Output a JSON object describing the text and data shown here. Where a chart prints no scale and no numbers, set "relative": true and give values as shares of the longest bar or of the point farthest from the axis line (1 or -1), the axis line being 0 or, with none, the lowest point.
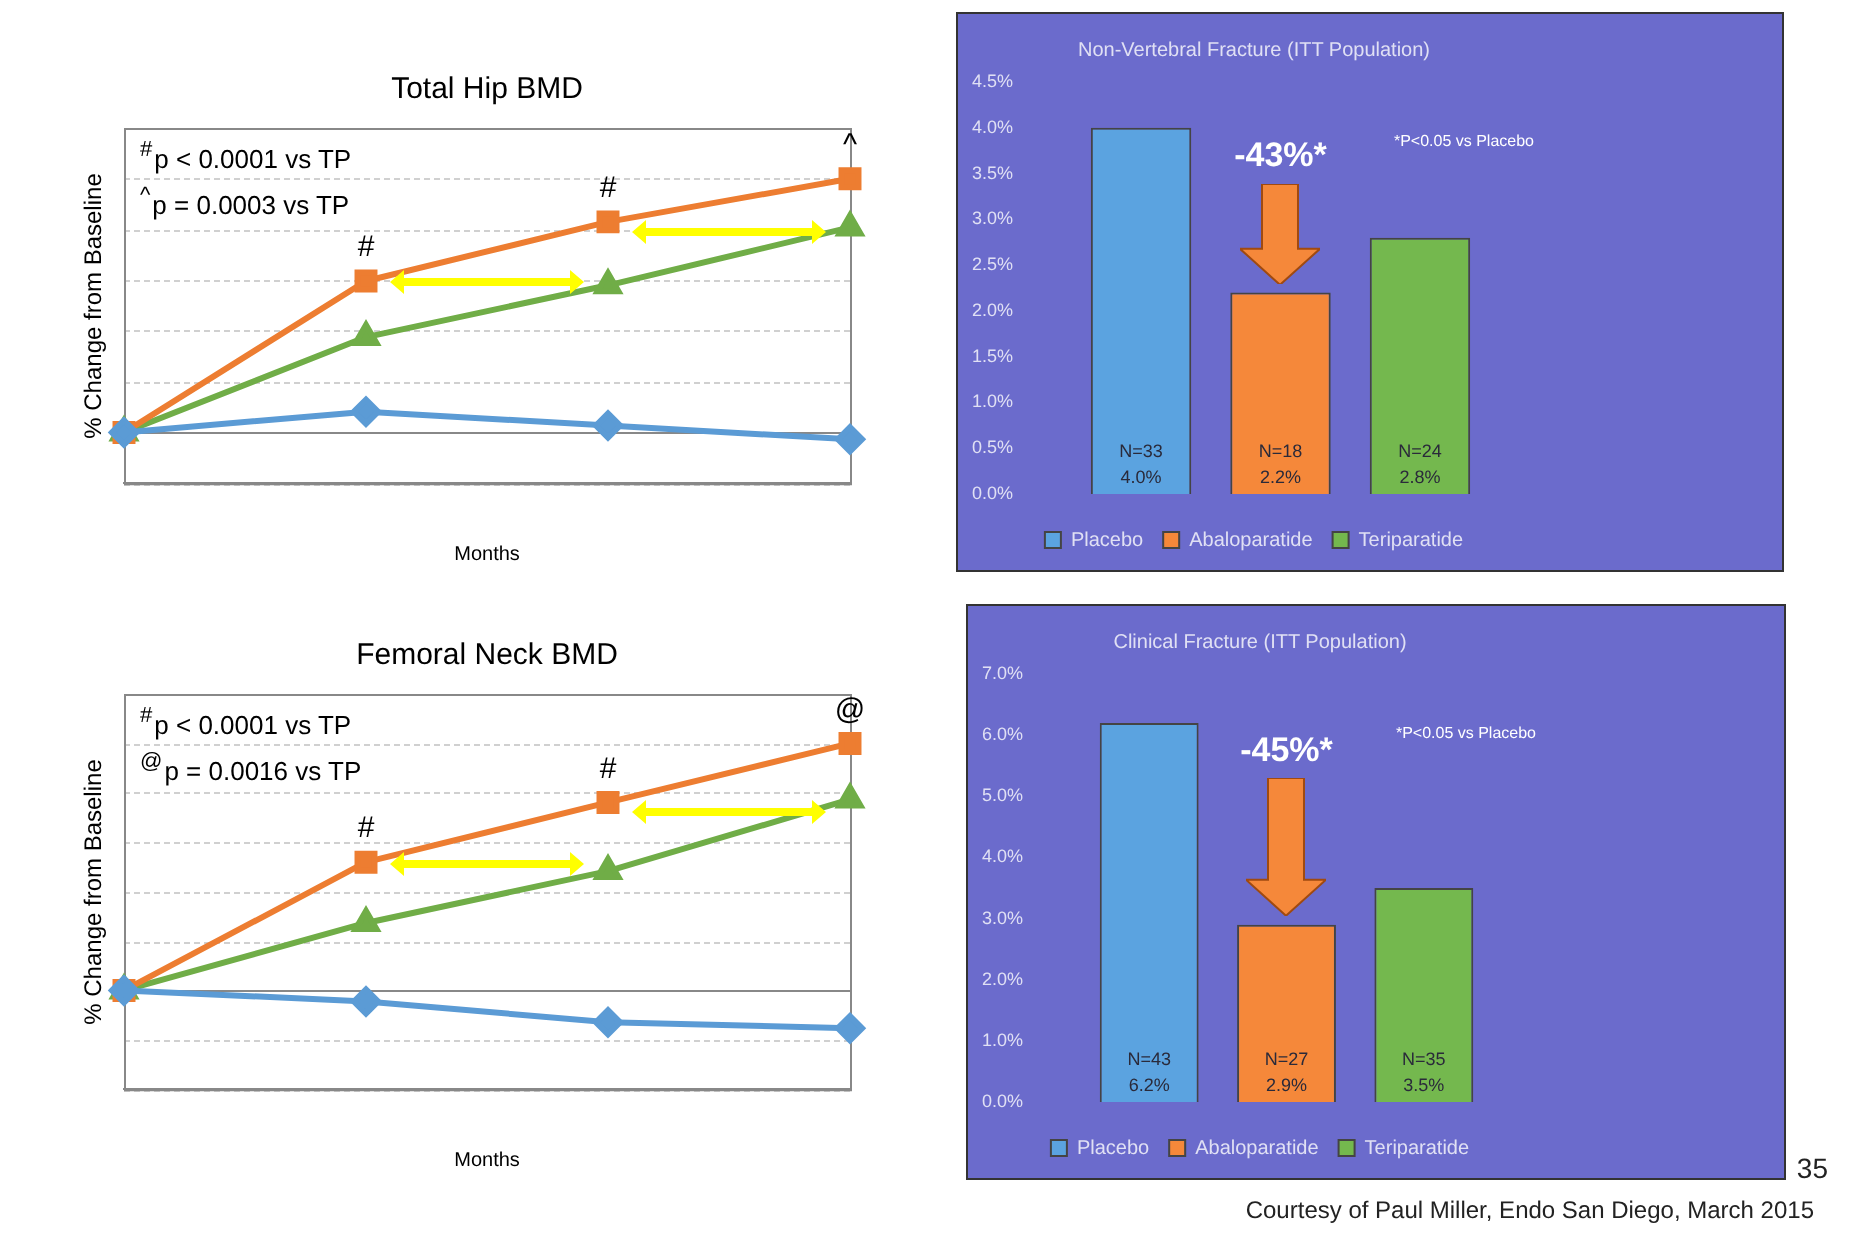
{
  "chart_data": [
    {
      "type": "line",
      "title": "Total Hip BMD",
      "xlabel": "Months",
      "ylabel": "% Change from Baseline",
      "relative": true,
      "categories": [
        null,
        null,
        null,
        null
      ],
      "grid": "y",
      "legend": false,
      "line_style": "solid",
      "series": [
        {
          "color": "#5b9bd5",
          "marker": "diamond",
          "values": [
            0,
            0.082,
            0.027,
            -0.027
          ]
        },
        {
          "color": "#ed7d31",
          "marker": "square",
          "values": [
            0,
            0.597,
            0.83,
            1
          ]
        },
        {
          "color": "#70ad47",
          "marker": "triangle",
          "values": [
            0,
            0.376,
            0.58,
            0.808
          ]
        }
      ],
      "annotations": [
        "$^{#}$p < 0.0001 vs TP",
        "$^{^}$p = 0.0003 vs TP",
        {
          "text": "#",
          "y": 0.597
        },
        {
          "text": "#",
          "y": 0.83
        },
        {
          "text": "^",
          "y": 1
        }
      ]
    },
    {
      "type": "bar",
      "title": "Non-Vertebral Fracture (ITT Population)",
      "categories": [
        null
      ],
      "legend": "bottom",
      "grid": false,
      "ylim": [
        0,
        4.5
      ],
      "yticks": [
        {
          "value": 0,
          "label": "0.0%"
        },
        {
          "value": 0.5,
          "label": "0.5%"
        },
        {
          "value": 1,
          "label": "1.0%"
        },
        {
          "value": 1.5,
          "label": "1.5%"
        },
        {
          "value": 2,
          "label": "2.0%"
        },
        {
          "value": 2.5,
          "label": "2.5%"
        },
        {
          "value": 3,
          "label": "3.0%"
        },
        {
          "value": 3.5,
          "label": "3.5%"
        },
        {
          "value": 4,
          "label": "4.0%"
        },
        {
          "value": 4.5,
          "label": "4.5%"
        }
      ],
      "series": [
        {
          "name": "Placebo",
          "color": "#5ba3e0",
          "values": [
            4.0
          ],
          "value_labels": [
            "N=33\n4.0%"
          ]
        },
        {
          "name": "Abaloparatide",
          "color": "#f5883a",
          "values": [
            2.2
          ],
          "value_labels": [
            "N=18\n2.2%"
          ]
        },
        {
          "name": "Teriparatide",
          "color": "#74b84e",
          "values": [
            2.8
          ],
          "value_labels": [
            "N=24\n2.8%"
          ]
        }
      ],
      "annotations": [
        "-43%*",
        "*P<0.05 vs Placebo"
      ]
    },
    {
      "type": "line",
      "title": "Femoral Neck BMD",
      "xlabel": "Months",
      "ylabel": "% Change from Baseline",
      "relative": true,
      "categories": [
        null,
        null,
        null,
        null
      ],
      "grid": "y",
      "legend": false,
      "line_style": "solid",
      "series": [
        {
          "color": "#5b9bd5",
          "marker": "diamond",
          "values": [
            0,
            -0.045,
            -0.129,
            -0.153
          ]
        },
        {
          "color": "#ed7d31",
          "marker": "square",
          "values": [
            0,
            0.519,
            0.761,
            1
          ]
        },
        {
          "color": "#70ad47",
          "marker": "triangle",
          "values": [
            0,
            0.273,
            0.483,
            0.773
          ]
        }
      ],
      "annotations": [
        "$^{#}$p < 0.0001 vs TP",
        "$^{@}$p = 0.0016 vs TP",
        {
          "text": "#",
          "y": 0.519
        },
        {
          "text": "#",
          "y": 0.761
        },
        {
          "text": "@",
          "y": 1
        }
      ]
    },
    {
      "type": "bar",
      "title": "Clinical Fracture (ITT Population)",
      "categories": [
        null
      ],
      "legend": "bottom",
      "grid": false,
      "ylim": [
        0,
        7
      ],
      "yticks": [
        {
          "value": 0,
          "label": "0.0%"
        },
        {
          "value": 1,
          "label": "1.0%"
        },
        {
          "value": 2,
          "label": "2.0%"
        },
        {
          "value": 3,
          "label": "3.0%"
        },
        {
          "value": 4,
          "label": "4.0%"
        },
        {
          "value": 5,
          "label": "5.0%"
        },
        {
          "value": 6,
          "label": "6.0%"
        },
        {
          "value": 7,
          "label": "7.0%"
        }
      ],
      "series": [
        {
          "name": "Placebo",
          "color": "#5ba3e0",
          "values": [
            6.2
          ],
          "value_labels": [
            "N=43\n6.2%"
          ]
        },
        {
          "name": "Abaloparatide",
          "color": "#f5883a",
          "values": [
            2.9
          ],
          "value_labels": [
            "N=27\n2.9%"
          ]
        },
        {
          "name": "Teriparatide",
          "color": "#74b84e",
          "values": [
            3.5
          ],
          "value_labels": [
            "N=35\n3.5%"
          ]
        }
      ],
      "annotations": [
        "-45%*",
        "*P<0.05 vs Placebo",
        "35",
        "Courtesy of Paul Miller, Endo San Diego, March 2015"
      ]
    }
  ]
}
